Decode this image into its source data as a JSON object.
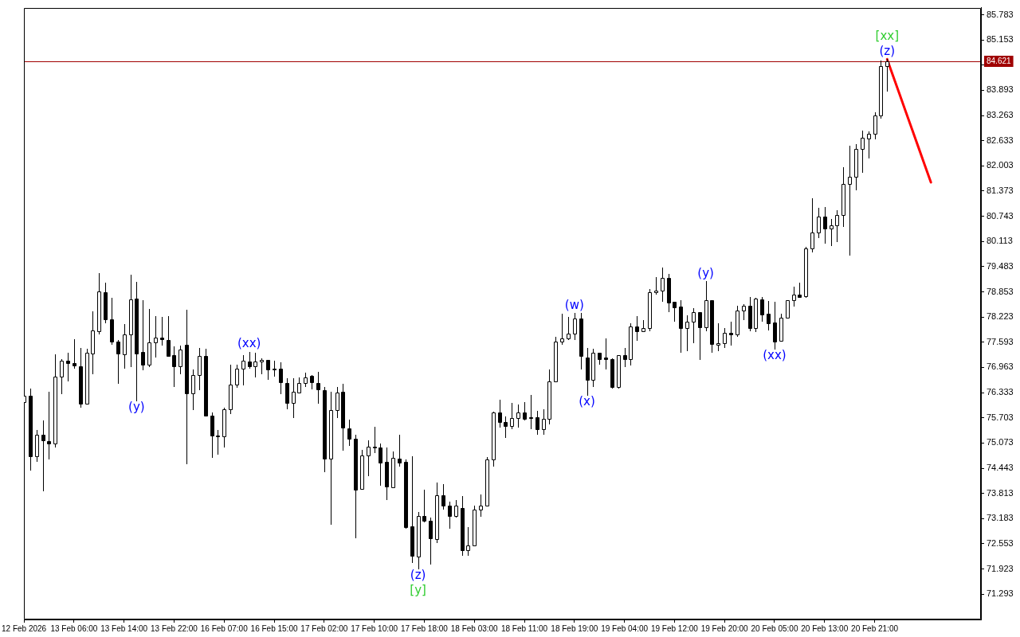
{
  "chart_data": {
    "type": "candlestick",
    "categories": [
      "12 Feb 2026",
      null,
      null,
      null,
      null,
      null,
      null,
      null,
      "13 Feb 06:00",
      null,
      null,
      null,
      null,
      null,
      null,
      null,
      "13 Feb 14:00",
      null,
      null,
      null,
      null,
      null,
      null,
      null,
      "13 Feb 22:00",
      null,
      null,
      null,
      null,
      null,
      null,
      null,
      "16 Feb 07:00",
      null,
      null,
      null,
      null,
      null,
      null,
      null,
      "16 Feb 15:00",
      null,
      null,
      null,
      null,
      null,
      null,
      null,
      "17 Feb 02:00",
      null,
      null,
      null,
      null,
      null,
      null,
      null,
      "17 Feb 10:00",
      null,
      null,
      null,
      null,
      null,
      null,
      null,
      "17 Feb 18:00",
      null,
      null,
      null,
      null,
      null,
      null,
      null,
      "18 Feb 03:00",
      null,
      null,
      null,
      null,
      null,
      null,
      null,
      "18 Feb 11:00",
      null,
      null,
      null,
      null,
      null,
      null,
      null,
      "18 Feb 19:00",
      null,
      null,
      null,
      null,
      null,
      null,
      null,
      "19 Feb 04:00",
      null,
      null,
      null,
      null,
      null,
      null,
      null,
      "19 Feb 12:00",
      null,
      null,
      null,
      null,
      null,
      null,
      null,
      "19 Feb 20:00",
      null,
      null,
      null,
      null,
      null,
      null,
      null,
      "20 Feb 05:00",
      null,
      null,
      null,
      null,
      null,
      null,
      null,
      "20 Feb 13:00",
      null,
      null,
      null,
      null,
      null,
      null,
      null,
      "20 Feb 21:00",
      null,
      null,
      null,
      null,
      null,
      null,
      null,
      null,
      null,
      null,
      null,
      null,
      null,
      null,
      null,
      null,
      null
    ],
    "ylim": [
      70.66,
      85.96
    ],
    "yticks": [
      85.783,
      85.153,
      {
        "value": 84.523,
        "label": null
      },
      83.893,
      83.263,
      82.633,
      82.003,
      81.373,
      80.743,
      80.113,
      79.483,
      78.853,
      78.223,
      77.593,
      76.963,
      76.333,
      75.703,
      75.073,
      74.443,
      73.813,
      73.183,
      72.553,
      71.923,
      71.293
    ],
    "series": [
      {
        "color": "#000000",
        "ohlc": [
          [
            76.1,
            76.25,
            76.1,
            76.25
          ],
          [
            76.25,
            76.43,
            74.4,
            74.74
          ],
          [
            74.75,
            75.4,
            74.63,
            75.28
          ],
          [
            75.27,
            75.63,
            73.89,
            75.14
          ],
          [
            75.13,
            76.35,
            74.68,
            75.06
          ],
          [
            75.06,
            77.3,
            74.99,
            76.73
          ],
          [
            76.73,
            77.17,
            76.31,
            77.14
          ],
          [
            77.13,
            77.34,
            76.63,
            77.07
          ],
          [
            77.08,
            77.67,
            76.96,
            77.01
          ],
          [
            77.0,
            77.44,
            75.98,
            76.06
          ],
          [
            76.06,
            77.42,
            76.06,
            77.34
          ],
          [
            77.32,
            78.36,
            76.82,
            77.89
          ],
          [
            77.87,
            79.33,
            77.8,
            78.87
          ],
          [
            78.85,
            79.09,
            78.08,
            78.16
          ],
          [
            78.16,
            78.7,
            77.55,
            77.6
          ],
          [
            77.61,
            77.65,
            76.58,
            77.32
          ],
          [
            77.3,
            78.05,
            76.95,
            77.79
          ],
          [
            77.78,
            79.29,
            77.0,
            78.67
          ],
          [
            78.68,
            79.11,
            76.14,
            77.32
          ],
          [
            77.36,
            78.64,
            76.91,
            77.03
          ],
          [
            77.03,
            78.42,
            76.99,
            77.59
          ],
          [
            77.59,
            78.24,
            77.24,
            77.71
          ],
          [
            77.71,
            78.22,
            77.53,
            77.66
          ],
          [
            77.65,
            78.24,
            77.26,
            77.26
          ],
          [
            77.27,
            77.49,
            76.5,
            76.99
          ],
          [
            76.99,
            77.51,
            76.81,
            77.41
          ],
          [
            77.53,
            78.4,
            74.57,
            76.31
          ],
          [
            76.32,
            76.92,
            75.91,
            76.78
          ],
          [
            76.78,
            77.45,
            76.42,
            77.25
          ],
          [
            77.25,
            77.42,
            75.75,
            75.75
          ],
          [
            75.76,
            75.84,
            74.72,
            75.26
          ],
          [
            75.26,
            75.4,
            74.8,
            75.24
          ],
          [
            75.24,
            75.96,
            74.99,
            75.92
          ],
          [
            75.91,
            77.04,
            75.81,
            76.54
          ],
          [
            76.54,
            77.04,
            76.48,
            76.94
          ],
          [
            76.94,
            77.27,
            76.53,
            77.13
          ],
          [
            77.11,
            77.36,
            76.95,
            76.99
          ],
          [
            77.0,
            77.33,
            76.73,
            77.11
          ],
          [
            77.11,
            77.19,
            76.81,
            77.15
          ],
          [
            77.15,
            77.15,
            76.67,
            76.91
          ],
          [
            76.94,
            77.14,
            76.75,
            76.91
          ],
          [
            76.94,
            77.09,
            76.32,
            76.6
          ],
          [
            76.58,
            76.7,
            75.93,
            76.08
          ],
          [
            76.08,
            76.7,
            75.71,
            76.35
          ],
          [
            76.34,
            76.72,
            76.34,
            76.58
          ],
          [
            76.58,
            76.84,
            76.5,
            76.72
          ],
          [
            76.75,
            76.77,
            76.44,
            76.6
          ],
          [
            76.58,
            76.86,
            76.08,
            76.42
          ],
          [
            76.4,
            76.47,
            74.37,
            74.68
          ],
          [
            74.69,
            76.35,
            73.05,
            75.89
          ],
          [
            75.89,
            76.47,
            75.71,
            76.33
          ],
          [
            76.35,
            76.55,
            74.9,
            75.45
          ],
          [
            75.44,
            75.66,
            75.03,
            75.18
          ],
          [
            75.18,
            75.28,
            72.72,
            73.9
          ],
          [
            73.92,
            74.9,
            73.92,
            74.76
          ],
          [
            74.76,
            75.15,
            74.27,
            74.99
          ],
          [
            74.99,
            75.47,
            74.84,
            74.96
          ],
          [
            74.97,
            75.07,
            74.02,
            74.59
          ],
          [
            74.6,
            74.97,
            73.66,
            73.98
          ],
          [
            73.96,
            74.86,
            73.96,
            74.71
          ],
          [
            74.69,
            75.27,
            74.5,
            74.59
          ],
          [
            74.6,
            74.66,
            72.95,
            72.97
          ],
          [
            72.99,
            74.74,
            72.1,
            72.26
          ],
          [
            72.24,
            73.34,
            71.94,
            73.24
          ],
          [
            73.24,
            73.91,
            73.11,
            73.13
          ],
          [
            73.12,
            73.2,
            72.05,
            72.7
          ],
          [
            72.68,
            74.09,
            72.6,
            73.77
          ],
          [
            73.77,
            74.05,
            73.43,
            73.51
          ],
          [
            73.51,
            73.6,
            72.95,
            73.25
          ],
          [
            73.25,
            73.64,
            73.23,
            73.5
          ],
          [
            73.45,
            73.75,
            72.28,
            72.4
          ],
          [
            72.4,
            72.97,
            72.28,
            72.51
          ],
          [
            72.51,
            73.5,
            72.51,
            73.41
          ],
          [
            73.41,
            73.79,
            73.25,
            73.51
          ],
          [
            73.51,
            74.73,
            73.51,
            74.67
          ],
          [
            74.67,
            75.86,
            74.5,
            75.84
          ],
          [
            75.84,
            76.16,
            75.48,
            75.59
          ],
          [
            75.6,
            75.74,
            75.22,
            75.5
          ],
          [
            75.5,
            76.08,
            75.43,
            75.7
          ],
          [
            75.7,
            76.04,
            75.47,
            75.83
          ],
          [
            75.83,
            76.1,
            75.66,
            75.67
          ],
          [
            75.72,
            76.28,
            75.43,
            75.7
          ],
          [
            75.72,
            75.88,
            75.3,
            75.42
          ],
          [
            75.42,
            75.91,
            75.3,
            75.67
          ],
          [
            75.68,
            76.92,
            75.56,
            76.62
          ],
          [
            76.62,
            77.73,
            76.62,
            77.61
          ],
          [
            77.61,
            78.3,
            77.54,
            77.68
          ],
          [
            77.68,
            78.22,
            77.66,
            77.8
          ],
          [
            77.8,
            78.32,
            77.66,
            78.18
          ],
          [
            78.18,
            78.33,
            76.94,
            77.25
          ],
          [
            77.21,
            77.45,
            76.27,
            76.66
          ],
          [
            76.66,
            77.42,
            76.5,
            77.33
          ],
          [
            77.33,
            77.33,
            77.05,
            77.17
          ],
          [
            77.21,
            77.68,
            76.93,
            77.17
          ],
          [
            77.18,
            77.2,
            76.46,
            76.48
          ],
          [
            76.48,
            77.27,
            76.46,
            77.27
          ],
          [
            77.27,
            77.44,
            76.99,
            77.17
          ],
          [
            77.17,
            78.06,
            77.03,
            77.98
          ],
          [
            77.98,
            78.24,
            77.65,
            77.87
          ],
          [
            77.87,
            78.14,
            77.87,
            77.94
          ],
          [
            77.94,
            78.93,
            77.89,
            78.85
          ],
          [
            78.85,
            79.23,
            78.81,
            78.89
          ],
          [
            78.89,
            79.46,
            78.62,
            79.21
          ],
          [
            79.21,
            79.31,
            78.37,
            78.58
          ],
          [
            78.6,
            78.6,
            78.12,
            78.47
          ],
          [
            78.48,
            78.64,
            77.35,
            77.94
          ],
          [
            77.94,
            78.26,
            77.4,
            78.1
          ],
          [
            78.1,
            78.44,
            77.58,
            78.35
          ],
          [
            78.35,
            78.35,
            77.17,
            77.97
          ],
          [
            77.97,
            79.12,
            77.89,
            78.64
          ],
          [
            78.64,
            78.65,
            77.35,
            77.54
          ],
          [
            77.53,
            78.06,
            77.4,
            77.57
          ],
          [
            77.57,
            77.95,
            77.47,
            77.82
          ],
          [
            77.82,
            78.1,
            77.53,
            77.78
          ],
          [
            77.78,
            78.51,
            77.75,
            78.39
          ],
          [
            78.39,
            78.54,
            78.17,
            78.51
          ],
          [
            78.51,
            78.72,
            77.89,
            77.95
          ],
          [
            77.95,
            78.7,
            77.86,
            78.68
          ],
          [
            78.67,
            78.73,
            78.12,
            78.29
          ],
          [
            78.3,
            78.62,
            77.91,
            78.07
          ],
          [
            78.09,
            78.6,
            77.42,
            77.61
          ],
          [
            77.62,
            78.31,
            77.62,
            78.2
          ],
          [
            78.2,
            78.65,
            78.2,
            78.65
          ],
          [
            78.65,
            78.99,
            78.51,
            78.79
          ],
          [
            78.79,
            79.09,
            78.73,
            78.73
          ],
          [
            78.74,
            79.98,
            78.73,
            79.93
          ],
          [
            79.93,
            81.19,
            79.86,
            80.34
          ],
          [
            80.34,
            80.96,
            80.21,
            80.74
          ],
          [
            80.74,
            80.97,
            80.08,
            80.44
          ],
          [
            80.44,
            80.68,
            80.01,
            80.52
          ],
          [
            80.52,
            80.9,
            80.11,
            80.78
          ],
          [
            80.78,
            81.96,
            80.5,
            81.56
          ],
          [
            81.56,
            82.51,
            79.78,
            81.73
          ],
          [
            81.73,
            82.54,
            81.41,
            82.42
          ],
          [
            82.42,
            82.89,
            81.85,
            82.71
          ],
          [
            82.69,
            82.86,
            82.21,
            82.8
          ],
          [
            82.8,
            83.34,
            82.69,
            83.26
          ],
          [
            83.26,
            84.64,
            83.21,
            84.49
          ],
          [
            84.49,
            84.67,
            83.89,
            84.621
          ],
          null,
          null,
          null,
          null,
          null,
          null,
          null,
          null,
          null,
          null,
          null,
          null,
          null,
          null,
          null
        ]
      },
      {
        "type": "line",
        "color": "#ff0000",
        "values": [
          null,
          null,
          null,
          null,
          null,
          null,
          null,
          null,
          null,
          null,
          null,
          null,
          null,
          null,
          null,
          null,
          null,
          null,
          null,
          null,
          null,
          null,
          null,
          null,
          null,
          null,
          null,
          null,
          null,
          null,
          null,
          null,
          null,
          null,
          null,
          null,
          null,
          null,
          null,
          null,
          null,
          null,
          null,
          null,
          null,
          null,
          null,
          null,
          null,
          null,
          null,
          null,
          null,
          null,
          null,
          null,
          null,
          null,
          null,
          null,
          null,
          null,
          null,
          null,
          null,
          null,
          null,
          null,
          null,
          null,
          null,
          null,
          null,
          null,
          null,
          null,
          null,
          null,
          null,
          null,
          null,
          null,
          null,
          null,
          null,
          null,
          null,
          null,
          null,
          null,
          null,
          null,
          null,
          null,
          null,
          null,
          null,
          null,
          null,
          null,
          null,
          null,
          null,
          null,
          null,
          null,
          null,
          null,
          null,
          null,
          null,
          null,
          null,
          null,
          null,
          null,
          null,
          null,
          null,
          null,
          null,
          null,
          null,
          null,
          null,
          null,
          null,
          null,
          null,
          null,
          null,
          null,
          null,
          null,
          null,
          null,
          null,
          null,
          84.67,
          84.23,
          83.79,
          83.35,
          82.91,
          82.47,
          82.03,
          81.59,
          null,
          null,
          null,
          null,
          null,
          null,
          null,
          null
        ]
      }
    ],
    "ref_lines": [
      {
        "axis": "y",
        "value": 84.621,
        "label": "84.621",
        "color": "#a00000"
      }
    ],
    "annotations": [
      {
        "text": "(y)",
        "y": 76.14
      },
      {
        "text": "(xx)",
        "y": 77.36
      },
      {
        "text": "(z)",
        "y": 71.94
      },
      {
        "text": "[y]",
        "y": 71.94
      },
      {
        "text": "(w)",
        "y": 78.32
      },
      {
        "text": "(x)",
        "y": 76.27
      },
      {
        "text": "(y)",
        "y": 79.12
      },
      {
        "text": "(xx)",
        "y": 77.42
      },
      {
        "text": "(z)",
        "y": 84.67
      },
      {
        "text": "[xx]",
        "y": 84.67
      }
    ]
  }
}
